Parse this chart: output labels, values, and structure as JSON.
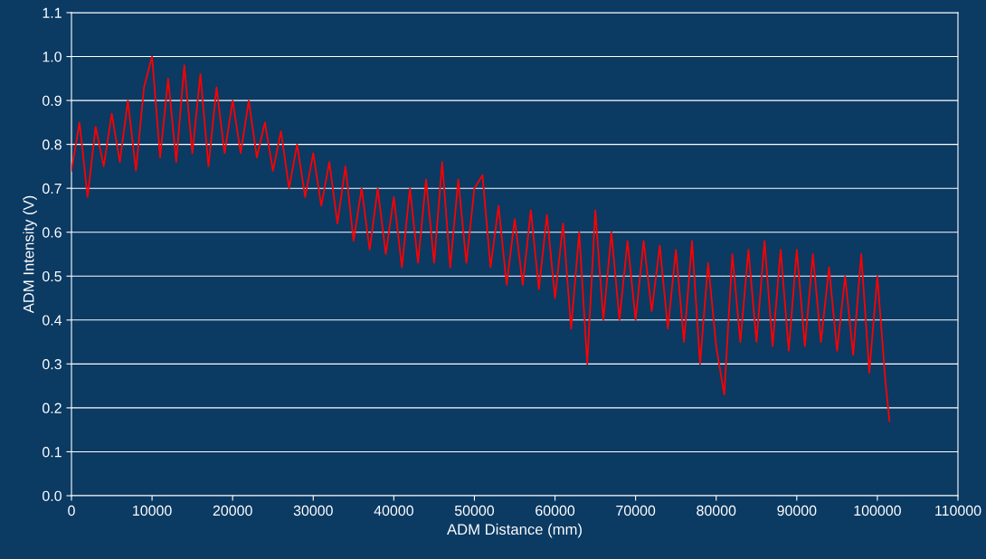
{
  "chart_data": {
    "type": "line",
    "xlabel": "ADM Distance (mm)",
    "ylabel": "ADM Intensity (V)",
    "xlim": [
      0,
      110000
    ],
    "xticks": [
      0,
      10000,
      20000,
      30000,
      40000,
      50000,
      60000,
      70000,
      80000,
      90000,
      100000,
      110000
    ],
    "ylim": [
      0,
      1.1
    ],
    "yticks": [
      {
        "value": 0,
        "label": "0.0"
      },
      0.1,
      0.2,
      0.3,
      0.4,
      0.5,
      0.6,
      0.7,
      0.8,
      0.9,
      {
        "value": 1,
        "label": "1.0"
      },
      1.1
    ],
    "grid": "y",
    "marker": "none",
    "line_style": "solid",
    "series": [
      {
        "color": "#ff0000",
        "x": [
          0,
          1000,
          2000,
          3000,
          4000,
          5000,
          6000,
          7000,
          8000,
          9000,
          10000,
          11000,
          12000,
          13000,
          14000,
          15000,
          16000,
          17000,
          18000,
          19000,
          20000,
          21000,
          22000,
          23000,
          24000,
          25000,
          26000,
          27000,
          28000,
          29000,
          30000,
          31000,
          32000,
          33000,
          34000,
          35000,
          36000,
          37000,
          38000,
          39000,
          40000,
          41000,
          42000,
          43000,
          44000,
          45000,
          46000,
          47000,
          48000,
          49000,
          50000,
          51000,
          52000,
          53000,
          54000,
          55000,
          56000,
          57000,
          58000,
          59000,
          60000,
          61000,
          62000,
          63000,
          64000,
          65000,
          66000,
          67000,
          68000,
          69000,
          70000,
          71000,
          72000,
          73000,
          74000,
          75000,
          76000,
          77000,
          78000,
          79000,
          80000,
          81000,
          82000,
          83000,
          84000,
          85000,
          86000,
          87000,
          88000,
          89000,
          90000,
          91000,
          92000,
          93000,
          94000,
          95000,
          96000,
          97000,
          98000,
          99000,
          100000,
          101000,
          101500
        ],
        "values": [
          0.74,
          0.85,
          0.68,
          0.84,
          0.75,
          0.87,
          0.76,
          0.9,
          0.74,
          0.93,
          1.0,
          0.77,
          0.95,
          0.76,
          0.98,
          0.78,
          0.96,
          0.75,
          0.93,
          0.78,
          0.9,
          0.78,
          0.9,
          0.77,
          0.85,
          0.74,
          0.83,
          0.7,
          0.8,
          0.68,
          0.78,
          0.66,
          0.76,
          0.62,
          0.75,
          0.58,
          0.7,
          0.56,
          0.7,
          0.55,
          0.68,
          0.52,
          0.7,
          0.53,
          0.72,
          0.53,
          0.76,
          0.52,
          0.72,
          0.53,
          0.7,
          0.73,
          0.52,
          0.66,
          0.48,
          0.63,
          0.48,
          0.65,
          0.47,
          0.64,
          0.45,
          0.62,
          0.38,
          0.6,
          0.3,
          0.65,
          0.4,
          0.6,
          0.4,
          0.58,
          0.4,
          0.58,
          0.42,
          0.57,
          0.38,
          0.56,
          0.35,
          0.58,
          0.3,
          0.53,
          0.34,
          0.23,
          0.55,
          0.35,
          0.56,
          0.35,
          0.58,
          0.34,
          0.56,
          0.33,
          0.56,
          0.34,
          0.55,
          0.35,
          0.52,
          0.33,
          0.5,
          0.32,
          0.55,
          0.28,
          0.5,
          0.26,
          0.17
        ]
      }
    ]
  }
}
